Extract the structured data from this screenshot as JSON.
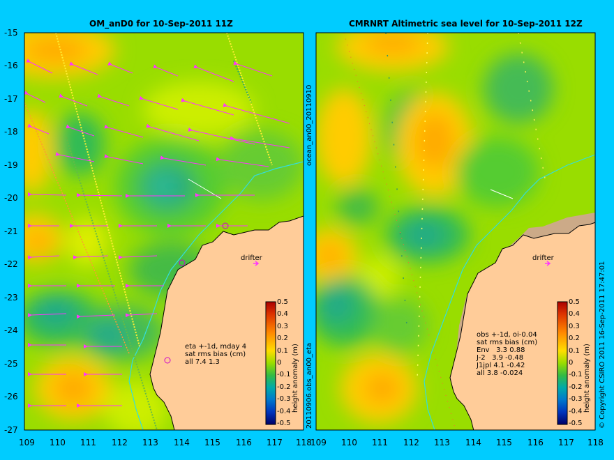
{
  "panels": [
    {
      "title": "OM_anD0 for 10-Sep-2011 11Z",
      "annotation": "eta +-1d, mday 4\nsat rms bias (cm)\nall 7.4 1.3",
      "side_label": "20110906.obs_an00_eta",
      "drifter_label": "drifter"
    },
    {
      "title": "CMRNRT Altimetric sea level  for 10-Sep-2011 12Z",
      "annotation": "obs +-1d, oi-0.04\nsat rms bias (cm)\nEnv   3.3 0.88\nJ-2   3.9 -0.48\nJ1jpl 4.1 -0.42\nall 3.8 -0.024",
      "side_label": "ocean_an00_20110910",
      "drifter_label": "drifter"
    }
  ],
  "copyright": "© Copyright CSIRO 2011   16-Sep-2011 17:47:01",
  "colorbar": {
    "label": "height anomaly (m)",
    "ticks": [
      "0.5",
      "0.4",
      "0.3",
      "0.2",
      "0.1",
      "0",
      "-0.1",
      "-0.2",
      "-0.3",
      "-0.4",
      "-0.5"
    ]
  },
  "chart_data": {
    "type": "heatmap",
    "x_ticks": [
      "109",
      "110",
      "111",
      "112",
      "113",
      "114",
      "115",
      "116",
      "117",
      "118"
    ],
    "y_ticks": [
      "-15",
      "-16",
      "-17",
      "-18",
      "-19",
      "-20",
      "-21",
      "-22",
      "-23",
      "-24",
      "-25",
      "-26",
      "-27"
    ],
    "xlim": [
      109,
      118
    ],
    "ylim": [
      -27,
      -15
    ],
    "colors": {
      "background": "#00ccff",
      "land": "#ffcc99",
      "arrows": "#ff33ff",
      "high": "#ff8800",
      "low": "#11aa77",
      "mid": "#99dd00"
    }
  }
}
